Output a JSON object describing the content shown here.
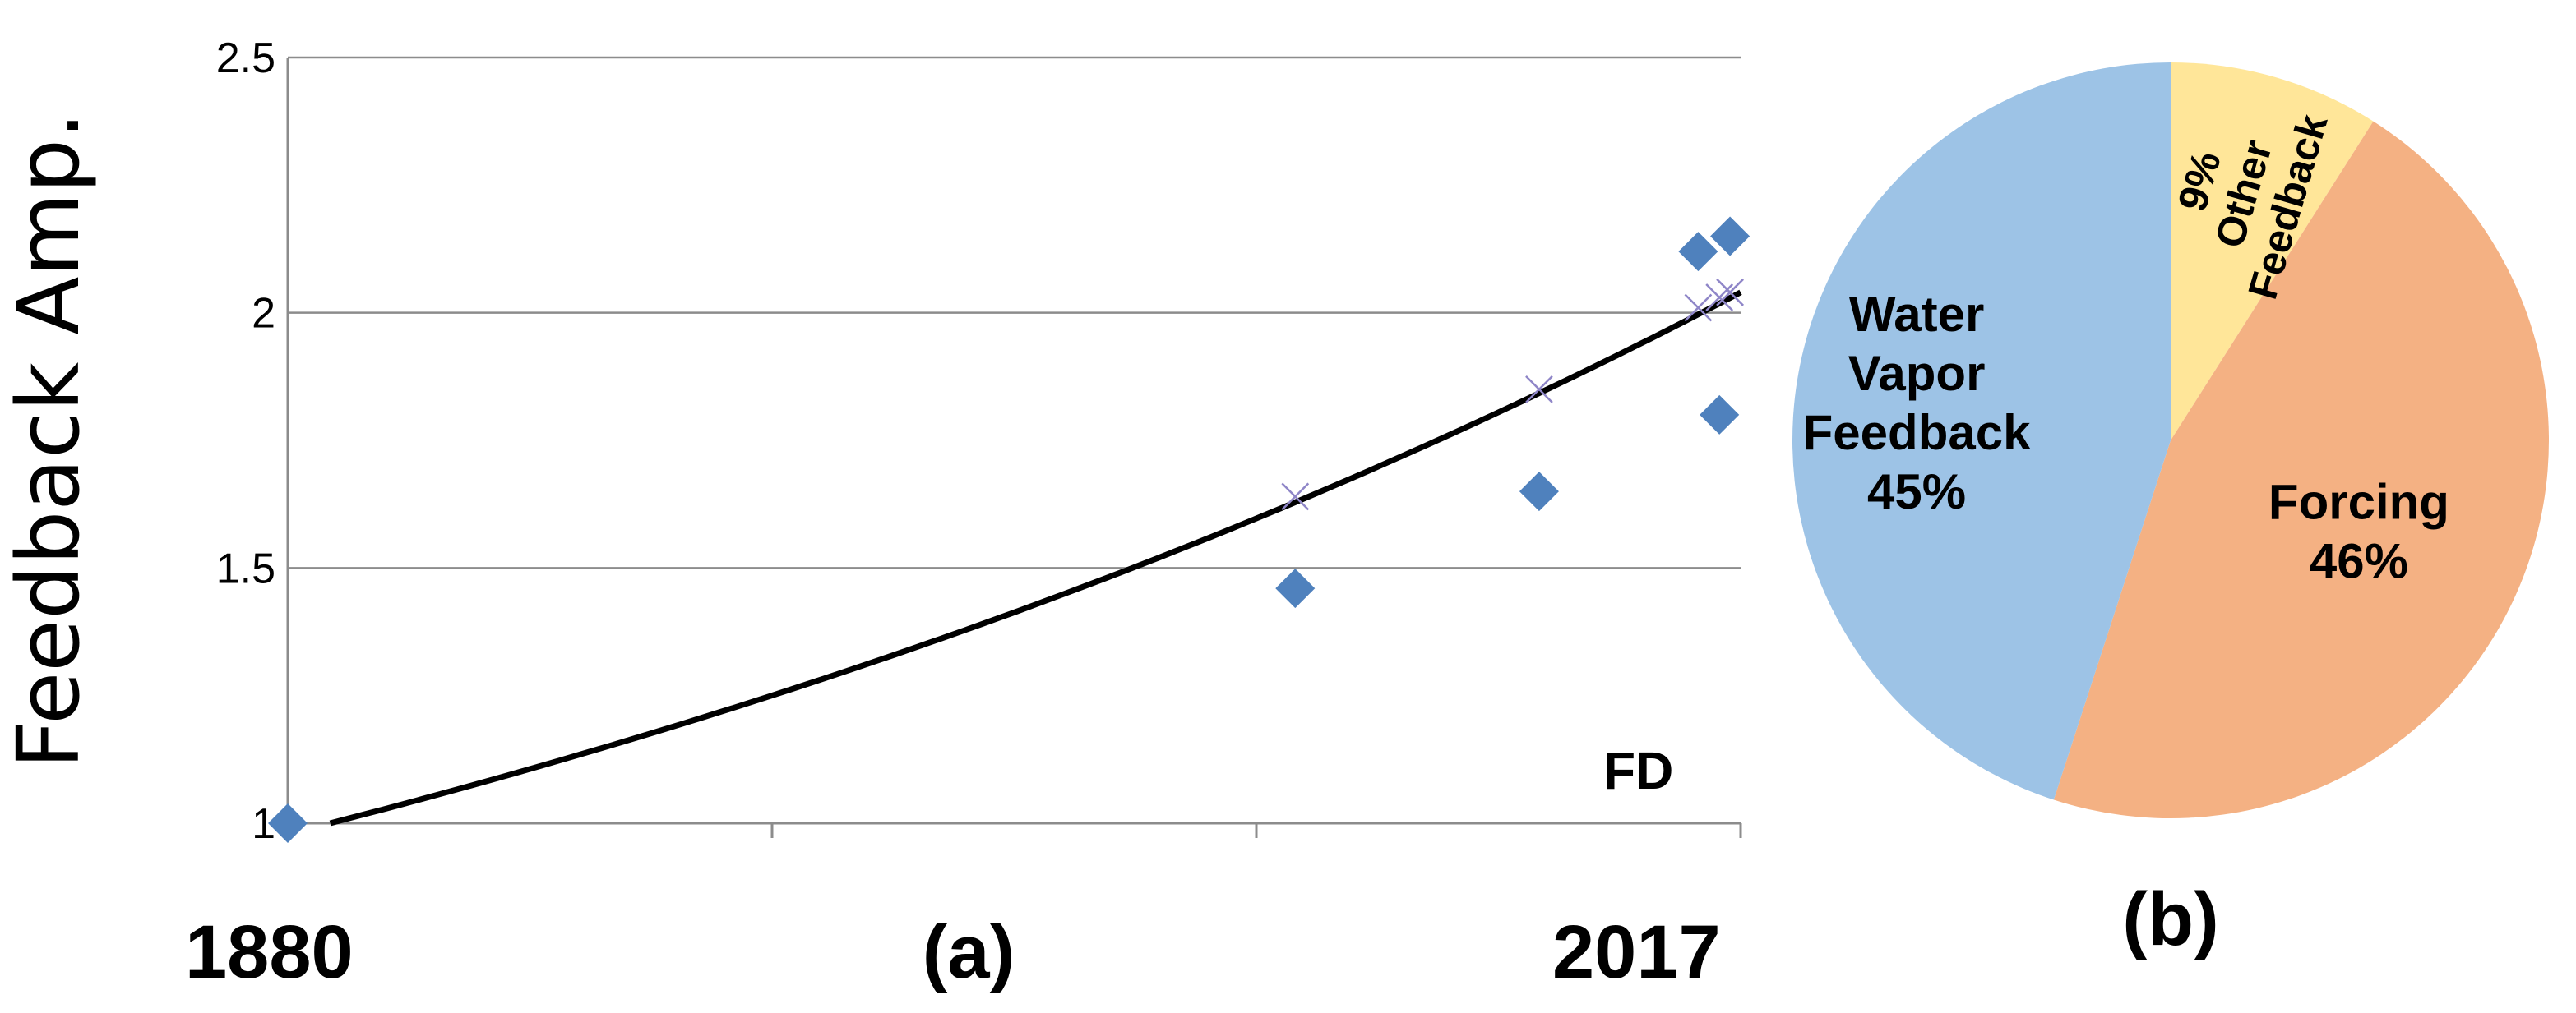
{
  "chart_data": [
    {
      "type": "scatter",
      "title": "",
      "ylabel": "Feedback Amp.",
      "xlabel": "",
      "panel_label": "(a)",
      "annotation": "FD",
      "xlim": [
        1880,
        2017
      ],
      "ylim": [
        1,
        2.5
      ],
      "yticks": [
        "1",
        "1.5",
        "2",
        "2.5"
      ],
      "xtick_labels": [
        "1880",
        "2017"
      ],
      "grid": true,
      "points": [
        {
          "x": 1880,
          "y": 1.0
        },
        {
          "x": 1975,
          "y": 1.46
        },
        {
          "x": 1998,
          "y": 1.65
        },
        {
          "x": 2013,
          "y": 2.12
        },
        {
          "x": 2015,
          "y": 1.8
        },
        {
          "x": 2016,
          "y": 2.15
        }
      ],
      "cross_points": [
        {
          "x": 1975,
          "y": 1.64
        },
        {
          "x": 1998,
          "y": 1.85
        },
        {
          "x": 2013,
          "y": 2.01
        },
        {
          "x": 2015,
          "y": 2.03
        },
        {
          "x": 2016,
          "y": 2.04
        }
      ],
      "trend_line": {
        "x": [
          1884,
          2017
        ],
        "y": [
          1.0,
          2.04
        ]
      }
    },
    {
      "type": "pie",
      "panel_label": "(b)",
      "slices": [
        {
          "name_lines": [
            "Other",
            "Feedback"
          ],
          "value": 9,
          "value_label": "9%",
          "color": "#FFE699"
        },
        {
          "name_lines": [
            "Forcing"
          ],
          "value": 46,
          "value_label": "46%",
          "color": "#F4B183"
        },
        {
          "name_lines": [
            "Water",
            "Vapor",
            "Feedback"
          ],
          "value": 45,
          "value_label": "45%",
          "color": "#9DC3E6"
        }
      ]
    }
  ]
}
